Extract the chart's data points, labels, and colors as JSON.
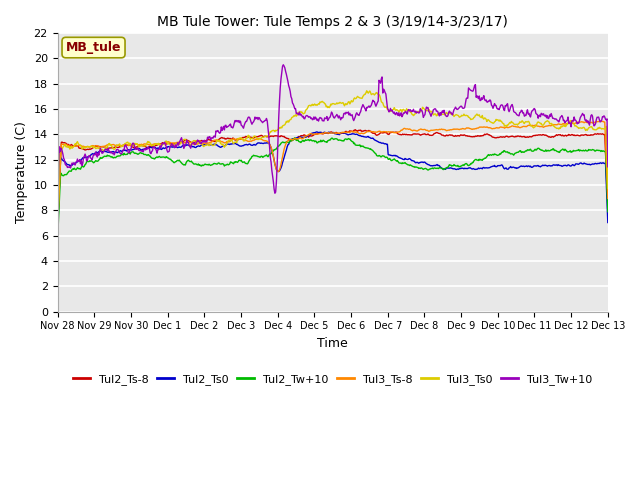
{
  "title": "MB Tule Tower: Tule Temps 2 & 3 (3/19/14-3/23/17)",
  "xlabel": "Time",
  "ylabel": "Temperature (C)",
  "ylim": [
    0,
    22
  ],
  "yticks": [
    0,
    2,
    4,
    6,
    8,
    10,
    12,
    14,
    16,
    18,
    20,
    22
  ],
  "x_start": 0,
  "x_end": 15,
  "xtick_labels": [
    "Nov 28",
    "Nov 29",
    "Nov 30",
    "Dec 1",
    "Dec 2",
    "Dec 3",
    "Dec 4",
    "Dec 5",
    "Dec 6",
    "Dec 7",
    "Dec 8",
    "Dec 9",
    "Dec 10",
    "Dec 11",
    "Dec 12",
    "Dec 13"
  ],
  "xtick_positions": [
    0,
    1,
    2,
    3,
    4,
    5,
    6,
    7,
    8,
    9,
    10,
    11,
    12,
    13,
    14,
    15
  ],
  "series": {
    "Tul2_Ts-8": {
      "color": "#cc0000",
      "label": "Tul2_Ts-8"
    },
    "Tul2_Ts0": {
      "color": "#0000cc",
      "label": "Tul2_Ts0"
    },
    "Tul2_Tw+10": {
      "color": "#00bb00",
      "label": "Tul2_Tw+10"
    },
    "Tul3_Ts-8": {
      "color": "#ff8800",
      "label": "Tul3_Ts-8"
    },
    "Tul3_Ts0": {
      "color": "#ddcc00",
      "label": "Tul3_Ts0"
    },
    "Tul3_Tw+10": {
      "color": "#9900bb",
      "label": "Tul3_Tw+10"
    }
  },
  "annotation_label": "MB_tule",
  "annotation_color": "#880000",
  "annotation_bg": "#ffffcc",
  "annotation_edge": "#999900",
  "plot_bg": "#e8e8e8",
  "fig_bg": "#ffffff",
  "linewidth": 1.0,
  "title_fontsize": 10,
  "axis_fontsize": 9,
  "tick_fontsize": 8,
  "xtick_fontsize": 7,
  "legend_fontsize": 8
}
